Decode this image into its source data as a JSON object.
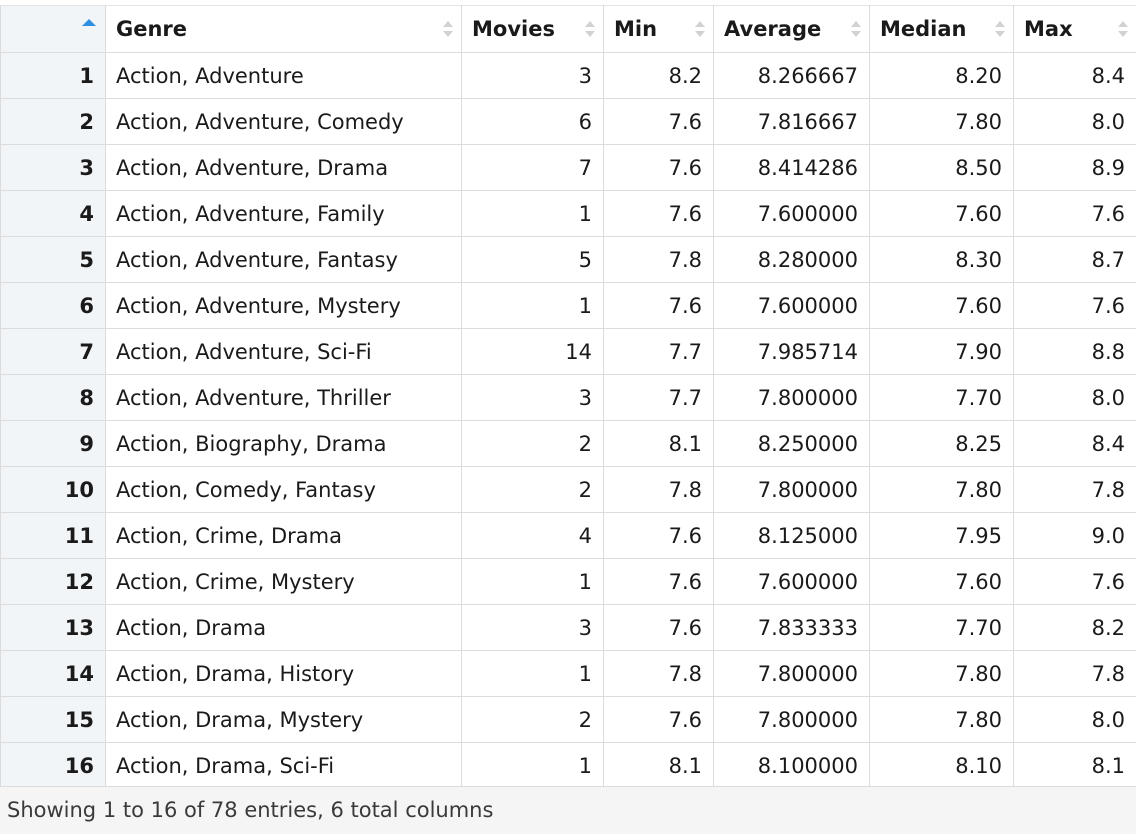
{
  "columns": {
    "genre": "Genre",
    "movies": "Movies",
    "min": "Min",
    "average": "Average",
    "median": "Median",
    "max": "Max"
  },
  "rows": [
    {
      "idx": "1",
      "genre": "Action, Adventure",
      "movies": "3",
      "min": "8.2",
      "average": "8.266667",
      "median": "8.20",
      "max": "8.4"
    },
    {
      "idx": "2",
      "genre": "Action, Adventure, Comedy",
      "movies": "6",
      "min": "7.6",
      "average": "7.816667",
      "median": "7.80",
      "max": "8.0"
    },
    {
      "idx": "3",
      "genre": "Action, Adventure, Drama",
      "movies": "7",
      "min": "7.6",
      "average": "8.414286",
      "median": "8.50",
      "max": "8.9"
    },
    {
      "idx": "4",
      "genre": "Action, Adventure, Family",
      "movies": "1",
      "min": "7.6",
      "average": "7.600000",
      "median": "7.60",
      "max": "7.6"
    },
    {
      "idx": "5",
      "genre": "Action, Adventure, Fantasy",
      "movies": "5",
      "min": "7.8",
      "average": "8.280000",
      "median": "8.30",
      "max": "8.7"
    },
    {
      "idx": "6",
      "genre": "Action, Adventure, Mystery",
      "movies": "1",
      "min": "7.6",
      "average": "7.600000",
      "median": "7.60",
      "max": "7.6"
    },
    {
      "idx": "7",
      "genre": "Action, Adventure, Sci-Fi",
      "movies": "14",
      "min": "7.7",
      "average": "7.985714",
      "median": "7.90",
      "max": "8.8"
    },
    {
      "idx": "8",
      "genre": "Action, Adventure, Thriller",
      "movies": "3",
      "min": "7.7",
      "average": "7.800000",
      "median": "7.70",
      "max": "8.0"
    },
    {
      "idx": "9",
      "genre": "Action, Biography, Drama",
      "movies": "2",
      "min": "8.1",
      "average": "8.250000",
      "median": "8.25",
      "max": "8.4"
    },
    {
      "idx": "10",
      "genre": "Action, Comedy, Fantasy",
      "movies": "2",
      "min": "7.8",
      "average": "7.800000",
      "median": "7.80",
      "max": "7.8"
    },
    {
      "idx": "11",
      "genre": "Action, Crime, Drama",
      "movies": "4",
      "min": "7.6",
      "average": "8.125000",
      "median": "7.95",
      "max": "9.0"
    },
    {
      "idx": "12",
      "genre": "Action, Crime, Mystery",
      "movies": "1",
      "min": "7.6",
      "average": "7.600000",
      "median": "7.60",
      "max": "7.6"
    },
    {
      "idx": "13",
      "genre": "Action, Drama",
      "movies": "3",
      "min": "7.6",
      "average": "7.833333",
      "median": "7.70",
      "max": "8.2"
    },
    {
      "idx": "14",
      "genre": "Action, Drama, History",
      "movies": "1",
      "min": "7.8",
      "average": "7.800000",
      "median": "7.80",
      "max": "7.8"
    },
    {
      "idx": "15",
      "genre": "Action, Drama, Mystery",
      "movies": "2",
      "min": "7.6",
      "average": "7.800000",
      "median": "7.80",
      "max": "8.0"
    },
    {
      "idx": "16",
      "genre": "Action, Drama, Sci-Fi",
      "movies": "1",
      "min": "8.1",
      "average": "8.100000",
      "median": "8.10",
      "max": "8.1"
    }
  ],
  "footer": {
    "status": "Showing 1 to 16 of 78 entries, 6 total columns"
  },
  "colors": {
    "sort_active": "#2f8fe0",
    "sort_inactive": "#d2d2d2",
    "index_bg": "#f1f5f8",
    "grid": "#dcdcdc"
  },
  "icons": {
    "index_sort": "sort-ascending-icon",
    "column_sort": "sort-icon"
  }
}
